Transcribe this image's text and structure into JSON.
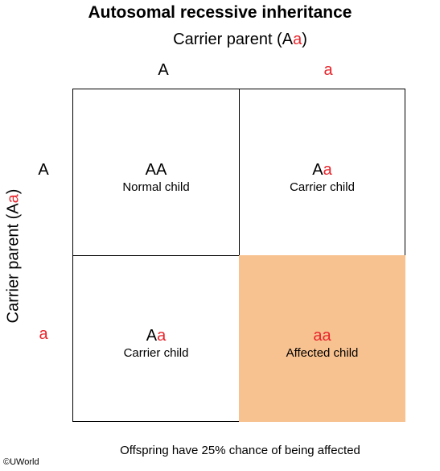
{
  "title": "Autosomal recessive inheritance",
  "top_parent": {
    "label_start": "Carrier parent (A",
    "label_red": "a",
    "label_end": ")"
  },
  "side_parent": {
    "label_start": "Carrier parent (A",
    "label_red": "a",
    "label_end": ")"
  },
  "top_alleles": [
    "A",
    "a"
  ],
  "side_alleles": [
    "A",
    "a"
  ],
  "cells": [
    {
      "genotype_dominant": "AA",
      "genotype_recessive": "",
      "phenotype": "Normal child"
    },
    {
      "genotype_dominant": "A",
      "genotype_recessive": "a",
      "phenotype": "Carrier child"
    },
    {
      "genotype_dominant": "A",
      "genotype_recessive": "a",
      "phenotype": "Carrier child"
    },
    {
      "genotype_dominant": "",
      "genotype_recessive": "aa",
      "phenotype": "Affected child"
    }
  ],
  "caption": "Offspring have 25% chance of being affected",
  "copyright": "©UWorld",
  "colors": {
    "recessive_allele": "#e8262d",
    "affected_cell": "#f8c290",
    "grid_line": "#000000"
  }
}
